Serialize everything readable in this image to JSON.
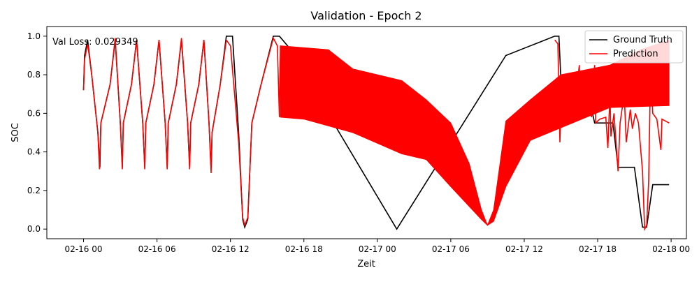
{
  "chart_data": {
    "type": "line",
    "title": "Validation - Epoch 2",
    "xlabel": "Zeit",
    "ylabel": "SOC",
    "annotation": "Val Loss: 0.029349",
    "x_range": [
      "2016-02-15T21:00",
      "2016-02-18T01:15"
    ],
    "ylim": [
      -0.05,
      1.05
    ],
    "grid": false,
    "legend_position": "top-right",
    "x_ticks": [
      {
        "t": "2016-02-16T00:00",
        "label": "02-16 00"
      },
      {
        "t": "2016-02-16T06:00",
        "label": "02-16 06"
      },
      {
        "t": "2016-02-16T12:00",
        "label": "02-16 12"
      },
      {
        "t": "2016-02-16T18:00",
        "label": "02-16 18"
      },
      {
        "t": "2016-02-17T00:00",
        "label": "02-17 00"
      },
      {
        "t": "2016-02-17T06:00",
        "label": "02-17 06"
      },
      {
        "t": "2016-02-17T12:00",
        "label": "02-17 12"
      },
      {
        "t": "2016-02-17T18:00",
        "label": "02-17 18"
      },
      {
        "t": "2016-02-18T00:00",
        "label": "02-18 00"
      }
    ],
    "y_ticks": [
      {
        "v": 0.0,
        "label": "0.0"
      },
      {
        "v": 0.2,
        "label": "0.2"
      },
      {
        "v": 0.4,
        "label": "0.4"
      },
      {
        "v": 0.6,
        "label": "0.6"
      },
      {
        "v": 0.8,
        "label": "0.8"
      },
      {
        "v": 1.0,
        "label": "1.0"
      }
    ],
    "series": [
      {
        "name": "Ground Truth",
        "color": "#000000",
        "points": [
          [
            "2016-02-16T00:00",
            0.72
          ],
          [
            "2016-02-16T00:05",
            0.9
          ],
          [
            "2016-02-16T00:20",
            0.98
          ],
          [
            "2016-02-16T00:40",
            0.8
          ],
          [
            "2016-02-16T01:10",
            0.5
          ],
          [
            "2016-02-16T01:20",
            0.32
          ],
          [
            "2016-02-16T01:25",
            0.55
          ],
          [
            "2016-02-16T02:10",
            0.75
          ],
          [
            "2016-02-16T02:35",
            0.98
          ],
          [
            "2016-02-16T03:00",
            0.55
          ],
          [
            "2016-02-16T03:10",
            0.32
          ],
          [
            "2016-02-16T03:15",
            0.55
          ],
          [
            "2016-02-16T03:55",
            0.75
          ],
          [
            "2016-02-16T04:20",
            0.98
          ],
          [
            "2016-02-16T04:50",
            0.55
          ],
          [
            "2016-02-16T05:00",
            0.32
          ],
          [
            "2016-02-16T05:05",
            0.55
          ],
          [
            "2016-02-16T05:45",
            0.75
          ],
          [
            "2016-02-16T06:10",
            0.98
          ],
          [
            "2016-02-16T06:40",
            0.55
          ],
          [
            "2016-02-16T06:50",
            0.32
          ],
          [
            "2016-02-16T06:55",
            0.55
          ],
          [
            "2016-02-16T07:35",
            0.75
          ],
          [
            "2016-02-16T08:00",
            0.98
          ],
          [
            "2016-02-16T08:30",
            0.55
          ],
          [
            "2016-02-16T08:40",
            0.32
          ],
          [
            "2016-02-16T08:45",
            0.55
          ],
          [
            "2016-02-16T09:25",
            0.75
          ],
          [
            "2016-02-16T09:50",
            0.98
          ],
          [
            "2016-02-16T10:15",
            0.55
          ],
          [
            "2016-02-16T10:25",
            0.31
          ],
          [
            "2016-02-16T10:30",
            0.5
          ],
          [
            "2016-02-16T11:10",
            0.75
          ],
          [
            "2016-02-16T11:40",
            1.0
          ],
          [
            "2016-02-16T12:10",
            1.0
          ],
          [
            "2016-02-16T12:40",
            0.5
          ],
          [
            "2016-02-16T13:00",
            0.05
          ],
          [
            "2016-02-16T13:10",
            0.01
          ],
          [
            "2016-02-16T13:25",
            0.05
          ],
          [
            "2016-02-16T13:45",
            0.55
          ],
          [
            "2016-02-16T14:30",
            0.75
          ],
          [
            "2016-02-16T15:30",
            1.0
          ],
          [
            "2016-02-16T16:00",
            1.0
          ],
          [
            "2016-02-16T16:40",
            0.95
          ],
          [
            "2016-02-17T01:35",
            0.0
          ],
          [
            "2016-02-17T10:30",
            0.9
          ],
          [
            "2016-02-17T14:30",
            1.0
          ],
          [
            "2016-02-17T14:50",
            1.0
          ],
          [
            "2016-02-17T15:00",
            0.77
          ],
          [
            "2016-02-17T17:00",
            0.77
          ],
          [
            "2016-02-17T17:45",
            0.55
          ],
          [
            "2016-02-17T19:15",
            0.55
          ],
          [
            "2016-02-17T19:40",
            0.32
          ],
          [
            "2016-02-17T21:00",
            0.32
          ],
          [
            "2016-02-17T21:40",
            0.01
          ],
          [
            "2016-02-17T22:00",
            0.01
          ],
          [
            "2016-02-17T22:30",
            0.23
          ],
          [
            "2016-02-17T23:50",
            0.23
          ]
        ]
      },
      {
        "name": "Prediction",
        "color": "#ff0000",
        "points": [
          [
            "2016-02-16T00:00",
            0.72
          ],
          [
            "2016-02-16T00:05",
            0.88
          ],
          [
            "2016-02-16T00:20",
            0.96
          ],
          [
            "2016-02-16T00:40",
            0.8
          ],
          [
            "2016-02-16T01:10",
            0.5
          ],
          [
            "2016-02-16T01:18",
            0.31
          ],
          [
            "2016-02-16T01:25",
            0.55
          ],
          [
            "2016-02-16T02:10",
            0.75
          ],
          [
            "2016-02-16T02:35",
            0.99
          ],
          [
            "2016-02-16T03:00",
            0.55
          ],
          [
            "2016-02-16T03:10",
            0.31
          ],
          [
            "2016-02-16T03:15",
            0.55
          ],
          [
            "2016-02-16T03:55",
            0.75
          ],
          [
            "2016-02-16T04:20",
            0.98
          ],
          [
            "2016-02-16T04:50",
            0.55
          ],
          [
            "2016-02-16T05:00",
            0.31
          ],
          [
            "2016-02-16T05:05",
            0.55
          ],
          [
            "2016-02-16T05:45",
            0.75
          ],
          [
            "2016-02-16T06:10",
            0.98
          ],
          [
            "2016-02-16T06:40",
            0.55
          ],
          [
            "2016-02-16T06:50",
            0.31
          ],
          [
            "2016-02-16T06:55",
            0.55
          ],
          [
            "2016-02-16T07:35",
            0.75
          ],
          [
            "2016-02-16T08:00",
            0.99
          ],
          [
            "2016-02-16T08:30",
            0.55
          ],
          [
            "2016-02-16T08:40",
            0.31
          ],
          [
            "2016-02-16T08:45",
            0.55
          ],
          [
            "2016-02-16T09:25",
            0.75
          ],
          [
            "2016-02-16T09:50",
            0.98
          ],
          [
            "2016-02-16T10:15",
            0.55
          ],
          [
            "2016-02-16T10:25",
            0.29
          ],
          [
            "2016-02-16T10:30",
            0.5
          ],
          [
            "2016-02-16T11:10",
            0.75
          ],
          [
            "2016-02-16T11:40",
            0.98
          ],
          [
            "2016-02-16T12:00",
            0.95
          ],
          [
            "2016-02-16T12:40",
            0.45
          ],
          [
            "2016-02-16T13:00",
            0.06
          ],
          [
            "2016-02-16T13:10",
            0.02
          ],
          [
            "2016-02-16T13:25",
            0.06
          ],
          [
            "2016-02-16T13:45",
            0.55
          ],
          [
            "2016-02-16T14:30",
            0.75
          ],
          [
            "2016-02-16T15:30",
            0.99
          ],
          [
            "2016-02-16T15:50",
            0.95
          ],
          [
            "2016-02-16T16:00",
            0.58
          ],
          [
            "2016-02-16T16:05",
            0.95
          ]
        ],
        "band": {
          "upper": [
            [
              "2016-02-16T16:05",
              0.95
            ],
            [
              "2016-02-16T20:00",
              0.93
            ],
            [
              "2016-02-16T22:00",
              0.83
            ],
            [
              "2016-02-17T02:00",
              0.77
            ],
            [
              "2016-02-17T04:00",
              0.67
            ],
            [
              "2016-02-17T06:00",
              0.55
            ],
            [
              "2016-02-17T07:30",
              0.34
            ],
            [
              "2016-02-17T08:30",
              0.1
            ],
            [
              "2016-02-17T09:00",
              0.02
            ],
            [
              "2016-02-17T09:30",
              0.1
            ],
            [
              "2016-02-17T10:30",
              0.56
            ],
            [
              "2016-02-17T12:30",
              0.67
            ],
            [
              "2016-02-17T15:00",
              0.8
            ],
            [
              "2016-02-17T19:00",
              0.85
            ],
            [
              "2016-02-17T21:30",
              0.93
            ],
            [
              "2016-02-17T23:50",
              0.98
            ]
          ],
          "lower": [
            [
              "2016-02-17T23:50",
              0.64
            ],
            [
              "2016-02-17T19:00",
              0.63
            ],
            [
              "2016-02-17T12:30",
              0.46
            ],
            [
              "2016-02-17T10:30",
              0.22
            ],
            [
              "2016-02-17T09:30",
              0.04
            ],
            [
              "2016-02-17T09:00",
              0.02
            ],
            [
              "2016-02-17T08:30",
              0.05
            ],
            [
              "2016-02-17T06:00",
              0.22
            ],
            [
              "2016-02-17T04:00",
              0.36
            ],
            [
              "2016-02-17T02:00",
              0.39
            ],
            [
              "2016-02-16T22:00",
              0.5
            ],
            [
              "2016-02-16T18:00",
              0.57
            ],
            [
              "2016-02-16T16:05",
              0.58
            ]
          ]
        },
        "tail": [
          [
            "2016-02-17T14:30",
            0.98
          ],
          [
            "2016-02-17T14:45",
            0.96
          ],
          [
            "2016-02-17T14:55",
            0.45
          ],
          [
            "2016-02-17T15:00",
            0.64
          ],
          [
            "2016-02-17T15:40",
            0.68
          ],
          [
            "2016-02-17T16:00",
            0.8
          ],
          [
            "2016-02-17T16:05",
            0.62
          ],
          [
            "2016-02-17T16:30",
            0.85
          ],
          [
            "2016-02-17T16:35",
            0.62
          ],
          [
            "2016-02-17T17:00",
            0.8
          ],
          [
            "2016-02-17T17:05",
            0.6
          ],
          [
            "2016-02-17T17:20",
            0.7
          ],
          [
            "2016-02-17T17:30",
            0.58
          ],
          [
            "2016-02-17T17:45",
            0.85
          ],
          [
            "2016-02-17T17:50",
            0.55
          ],
          [
            "2016-02-17T18:10",
            0.57
          ],
          [
            "2016-02-17T18:40",
            0.58
          ],
          [
            "2016-02-17T18:50",
            0.42
          ],
          [
            "2016-02-17T19:00",
            0.7
          ],
          [
            "2016-02-17T19:05",
            0.48
          ],
          [
            "2016-02-17T19:20",
            0.6
          ],
          [
            "2016-02-17T19:40",
            0.3
          ],
          [
            "2016-02-17T19:50",
            0.55
          ],
          [
            "2016-02-17T20:10",
            0.7
          ],
          [
            "2016-02-17T20:20",
            0.45
          ],
          [
            "2016-02-17T20:40",
            0.62
          ],
          [
            "2016-02-17T20:50",
            0.52
          ],
          [
            "2016-02-17T21:05",
            0.6
          ],
          [
            "2016-02-17T21:20",
            0.55
          ],
          [
            "2016-02-17T21:40",
            0.3
          ],
          [
            "2016-02-17T21:50",
            0.0
          ],
          [
            "2016-02-17T22:00",
            0.02
          ],
          [
            "2016-02-17T22:10",
            0.25
          ],
          [
            "2016-02-17T22:20",
            0.87
          ],
          [
            "2016-02-17T22:30",
            0.6
          ],
          [
            "2016-02-17T22:50",
            0.57
          ],
          [
            "2016-02-17T23:10",
            0.41
          ],
          [
            "2016-02-17T23:15",
            0.57
          ],
          [
            "2016-02-17T23:50",
            0.55
          ]
        ]
      }
    ]
  }
}
